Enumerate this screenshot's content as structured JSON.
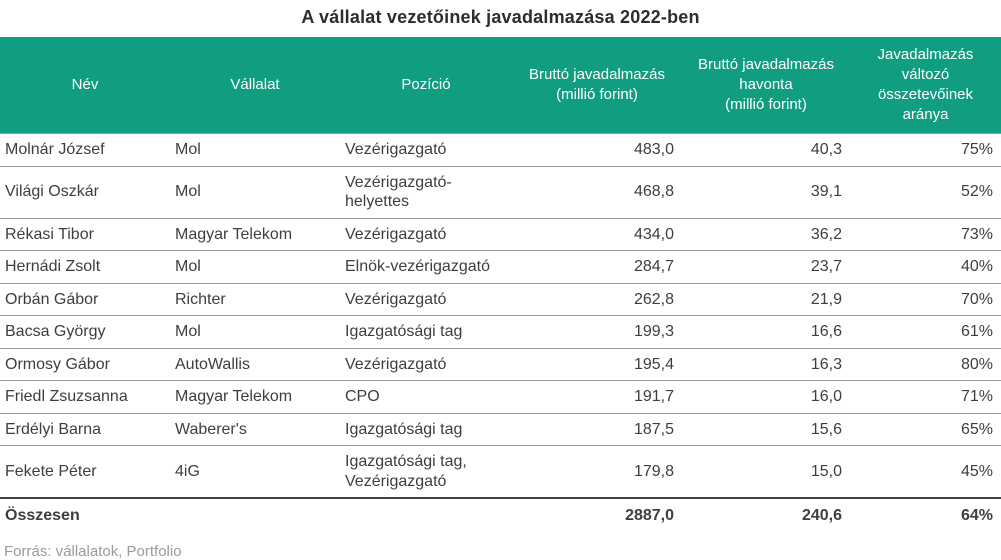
{
  "title": "A vállalat vezetőinek javadalmazása 2022-ben",
  "chart_data": {
    "type": "table",
    "title": "A vállalat vezetőinek javadalmazása 2022-ben",
    "columns": [
      "Név",
      "Vállalat",
      "Pozíció",
      "Bruttó javadalmazás\n(millió forint)",
      "Bruttó javadalmazás\nhavonta\n(millió forint)",
      "Javadalmazás\nváltozó\nösszetevőinek\naránya"
    ],
    "rows": [
      [
        "Molnár József",
        "Mol",
        "Vezérigazgató",
        "483,0",
        "40,3",
        "75%"
      ],
      [
        "Világi Oszkár",
        "Mol",
        "Vezérigazgató-helyettes",
        "468,8",
        "39,1",
        "52%"
      ],
      [
        "Rékasi Tibor",
        "Magyar Telekom",
        "Vezérigazgató",
        "434,0",
        "36,2",
        "73%"
      ],
      [
        "Hernádi Zsolt",
        "Mol",
        "Elnök-vezérigazgató",
        "284,7",
        "23,7",
        "40%"
      ],
      [
        "Orbán Gábor",
        "Richter",
        "Vezérigazgató",
        "262,8",
        "21,9",
        "70%"
      ],
      [
        "Bacsa György",
        "Mol",
        "Igazgatósági tag",
        "199,3",
        "16,6",
        "61%"
      ],
      [
        "Ormosy Gábor",
        "AutoWallis",
        "Vezérigazgató",
        "195,4",
        "16,3",
        "80%"
      ],
      [
        "Friedl Zsuzsanna",
        "Magyar Telekom",
        "CPO",
        "191,7",
        "16,0",
        "71%"
      ],
      [
        "Erdélyi Barna",
        "Waberer's",
        "Igazgatósági tag",
        "187,5",
        "15,6",
        "65%"
      ],
      [
        "Fekete Péter",
        "4iG",
        "Igazgatósági tag, Vezérigazgató",
        "179,8",
        "15,0",
        "45%"
      ]
    ],
    "total": [
      "Összesen",
      "",
      "",
      "2887,0",
      "240,6",
      "64%"
    ]
  },
  "source": "Forrás: vállalatok, Portfolio",
  "colors": {
    "header_bg": "#119e80",
    "header_text": "#ffffff",
    "body_text": "#3e3e3e",
    "row_divider": "#9c9c9c",
    "total_divider": "#3f3f3f",
    "source_text": "#9b9b9b"
  }
}
